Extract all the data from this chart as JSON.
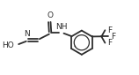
{
  "bg_color": "#ffffff",
  "line_color": "#2d2d2d",
  "lw": 1.3,
  "fs": 6.5,
  "fig_width": 1.58,
  "fig_height": 0.85,
  "dpi": 100,
  "xlim": [
    0.0,
    10.5
  ],
  "ylim": [
    1.5,
    6.0
  ]
}
